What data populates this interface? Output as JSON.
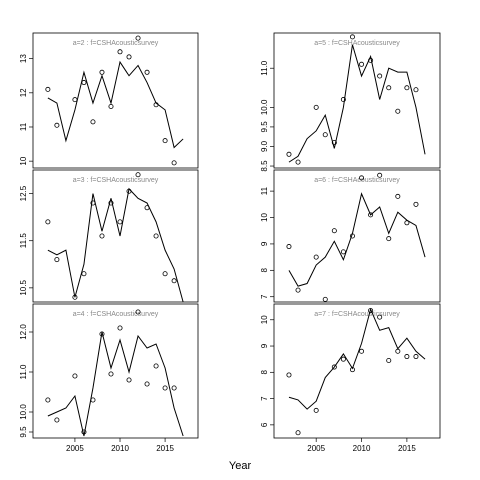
{
  "xlabel": "Year",
  "chart_data": [
    {
      "type": "line",
      "title": "a=2 : f=CSHAcousticsurvey",
      "x": [
        2002,
        2003,
        2004,
        2005,
        2006,
        2007,
        2008,
        2009,
        2010,
        2011,
        2012,
        2013,
        2014,
        2015,
        2016,
        2017
      ],
      "series": [
        {
          "style": "line",
          "color": "#000000",
          "values": [
            11.85,
            11.7,
            10.6,
            11.5,
            12.6,
            11.7,
            12.5,
            11.7,
            12.9,
            12.5,
            12.8,
            12.3,
            11.7,
            11.5,
            10.4,
            10.65
          ]
        },
        {
          "style": "points",
          "color": "#000000",
          "values": [
            12.1,
            11.05,
            null,
            11.8,
            12.3,
            11.15,
            12.6,
            11.6,
            13.2,
            13.05,
            13.6,
            12.6,
            11.65,
            10.6,
            9.95,
            null
          ]
        }
      ],
      "xlim": [
        2000.35,
        2018.65
      ],
      "ylim": [
        9.8,
        13.75
      ],
      "yticks": [
        10,
        11,
        12,
        13
      ]
    },
    {
      "type": "line",
      "title": "a=5 : f=CSHAcousticsurvey",
      "x": [
        2002,
        2003,
        2004,
        2005,
        2006,
        2007,
        2008,
        2009,
        2010,
        2011,
        2012,
        2013,
        2014,
        2015,
        2016,
        2017
      ],
      "series": [
        {
          "style": "line",
          "color": "#000000",
          "values": [
            8.6,
            8.75,
            9.2,
            9.4,
            9.8,
            8.95,
            10.0,
            11.6,
            10.8,
            11.3,
            10.2,
            11.0,
            10.9,
            10.9,
            10.0,
            8.8
          ]
        },
        {
          "style": "points",
          "color": "#000000",
          "values": [
            8.8,
            8.6,
            null,
            10.0,
            9.3,
            9.1,
            10.2,
            11.8,
            11.1,
            11.2,
            10.8,
            10.5,
            9.9,
            10.5,
            10.45,
            null
          ]
        }
      ],
      "xlim": [
        2000.35,
        2018.65
      ],
      "ylim": [
        8.45,
        11.9
      ],
      "yticks": [
        {
          "value": 8.5,
          "label": "8.5"
        },
        {
          "value": 9,
          "label": "9.0"
        },
        {
          "value": 9.5,
          "label": "9.5"
        },
        {
          "value": 10,
          "label": "10.0"
        },
        {
          "value": 11,
          "label": "11.0"
        }
      ]
    },
    {
      "type": "line",
      "title": "a=3 : f=CSHAcousticsurvey",
      "x": [
        2002,
        2003,
        2004,
        2005,
        2006,
        2007,
        2008,
        2009,
        2010,
        2011,
        2012,
        2013,
        2014,
        2015,
        2016,
        2017
      ],
      "series": [
        {
          "style": "line",
          "color": "#000000",
          "values": [
            11.3,
            11.2,
            11.3,
            10.3,
            11.0,
            12.5,
            11.7,
            12.4,
            11.6,
            12.6,
            12.4,
            12.3,
            11.9,
            11.3,
            10.9,
            10.2
          ]
        },
        {
          "style": "points",
          "color": "#000000",
          "values": [
            11.9,
            11.1,
            null,
            10.3,
            10.8,
            12.3,
            11.6,
            12.3,
            11.9,
            12.55,
            12.9,
            12.2,
            11.6,
            10.8,
            10.65,
            null
          ]
        }
      ],
      "xlim": [
        2000.35,
        2018.65
      ],
      "ylim": [
        10.2,
        13.0
      ],
      "yticks": [
        10.5,
        11.5,
        12.5
      ]
    },
    {
      "type": "line",
      "title": "a=6 : f=CSHAcousticsurvey",
      "x": [
        2002,
        2003,
        2004,
        2005,
        2006,
        2007,
        2008,
        2009,
        2010,
        2011,
        2012,
        2013,
        2014,
        2015,
        2016,
        2017
      ],
      "series": [
        {
          "style": "line",
          "color": "#000000",
          "values": [
            8.0,
            7.4,
            7.5,
            8.2,
            8.5,
            9.1,
            8.4,
            9.4,
            10.9,
            10.1,
            10.4,
            9.4,
            10.2,
            9.9,
            9.7,
            8.5
          ]
        },
        {
          "style": "points",
          "color": "#000000",
          "values": [
            8.9,
            7.25,
            null,
            8.5,
            6.9,
            9.5,
            8.7,
            9.3,
            11.5,
            10.1,
            11.6,
            9.2,
            10.8,
            9.8,
            10.5,
            null
          ]
        }
      ],
      "xlim": [
        2000.35,
        2018.65
      ],
      "ylim": [
        6.8,
        11.8
      ],
      "yticks": [
        7,
        8,
        9,
        10,
        11
      ]
    },
    {
      "type": "line",
      "title": "a=4 : f=CSHAcousticsurvey",
      "x": [
        2002,
        2003,
        2004,
        2005,
        2006,
        2007,
        2008,
        2009,
        2010,
        2011,
        2012,
        2013,
        2014,
        2015,
        2016,
        2017
      ],
      "series": [
        {
          "style": "line",
          "color": "#000000",
          "values": [
            9.9,
            10.0,
            10.1,
            10.4,
            9.4,
            10.6,
            12.0,
            11.1,
            11.8,
            11.0,
            11.9,
            11.6,
            11.7,
            11.1,
            10.1,
            9.4
          ]
        },
        {
          "style": "points",
          "color": "#000000",
          "values": [
            10.3,
            9.8,
            null,
            10.9,
            9.5,
            10.3,
            11.95,
            10.95,
            12.1,
            10.8,
            12.5,
            10.7,
            11.15,
            10.6,
            10.6,
            null
          ]
        }
      ],
      "xlim": [
        2000.35,
        2018.65
      ],
      "ylim": [
        9.35,
        12.7
      ],
      "xticks": [
        2005,
        2010,
        2015
      ],
      "yticks": [
        {
          "value": 9.5,
          "label": "9.5"
        },
        {
          "value": 10,
          "label": "10.0"
        },
        {
          "value": 11,
          "label": "11.0"
        },
        {
          "value": 12,
          "label": "12.0"
        }
      ]
    },
    {
      "type": "line",
      "title": "a=7 : f=CSHAcousticsurvey",
      "x": [
        2002,
        2003,
        2004,
        2005,
        2006,
        2007,
        2008,
        2009,
        2010,
        2011,
        2012,
        2013,
        2014,
        2015,
        2016,
        2017
      ],
      "series": [
        {
          "style": "line",
          "color": "#000000",
          "values": [
            7.05,
            6.95,
            6.6,
            6.9,
            7.8,
            8.2,
            8.7,
            8.15,
            9.1,
            10.4,
            9.6,
            9.7,
            8.9,
            9.3,
            8.8,
            8.5
          ]
        },
        {
          "style": "points",
          "color": "#000000",
          "values": [
            7.9,
            5.7,
            null,
            6.55,
            null,
            8.2,
            8.5,
            8.1,
            8.8,
            10.35,
            10.1,
            8.45,
            8.8,
            8.6,
            8.6,
            null
          ]
        }
      ],
      "xlim": [
        2000.35,
        2018.65
      ],
      "ylim": [
        5.5,
        10.6
      ],
      "xticks": [
        2005,
        2010,
        2015
      ],
      "yticks": [
        6,
        7,
        8,
        9,
        10
      ]
    }
  ]
}
